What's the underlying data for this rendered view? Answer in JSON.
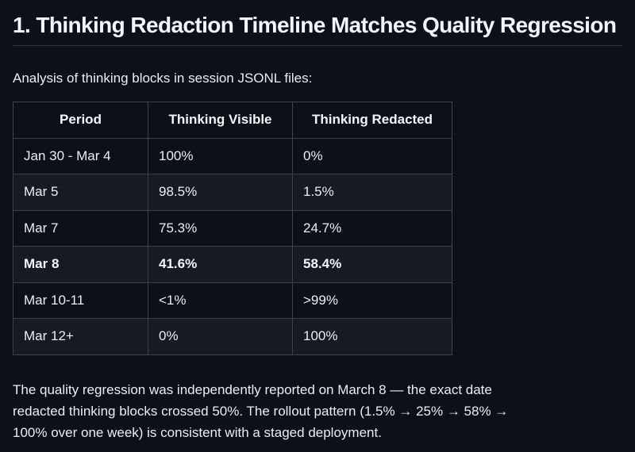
{
  "page": {
    "heading": "1. Thinking Redaction Timeline Matches Quality Regression",
    "intro": "Analysis of thinking blocks in session JSONL files:"
  },
  "table": {
    "columns": [
      "Period",
      "Thinking Visible",
      "Thinking Redacted"
    ],
    "rows": [
      {
        "period": "Jan 30 - Mar 4",
        "visible": "100%",
        "redacted": "0%",
        "emphasis": false
      },
      {
        "period": "Mar 5",
        "visible": "98.5%",
        "redacted": "1.5%",
        "emphasis": false
      },
      {
        "period": "Mar 7",
        "visible": "75.3%",
        "redacted": "24.7%",
        "emphasis": false
      },
      {
        "period": "Mar 8",
        "visible": "41.6%",
        "redacted": "58.4%",
        "emphasis": true
      },
      {
        "period": "Mar 10-11",
        "visible": "<1%",
        "redacted": ">99%",
        "emphasis": false
      },
      {
        "period": "Mar 12+",
        "visible": "0%",
        "redacted": "100%",
        "emphasis": false
      }
    ]
  },
  "footer": {
    "lines": [
      "The quality regression was independently reported on March 8 — the exact date",
      "redacted thinking blocks crossed 50%. The rollout pattern (1.5% → 25% → 58% →",
      "100% over one week) is consistent with a staged deployment."
    ]
  },
  "colors": {
    "background": "#0d1117",
    "row_alt": "#161b22",
    "table_border": "#3a424c",
    "divider": "#2d333c",
    "text": "#e9eef3",
    "heading_text": "#f2f6fb"
  }
}
